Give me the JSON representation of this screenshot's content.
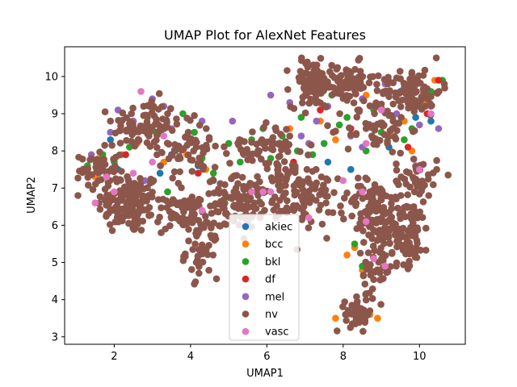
{
  "chart_data": {
    "type": "scatter",
    "title": "UMAP Plot for AlexNet Features",
    "xlabel": "UMAP1",
    "ylabel": "UMAP2",
    "xlim": [
      0.7,
      11.2
    ],
    "ylim": [
      2.8,
      10.8
    ],
    "xticks": [
      "2",
      "4",
      "6",
      "8",
      "10"
    ],
    "yticks": [
      "3",
      "4",
      "5",
      "6",
      "7",
      "8",
      "9",
      "10"
    ],
    "grid": false,
    "legend_position": "lower-center",
    "series": [
      {
        "name": "akiec",
        "color": "#1f77b4",
        "points": [
          [
            1.9,
            8.3
          ],
          [
            2.1,
            7.5
          ],
          [
            3.2,
            7.4
          ],
          [
            3.5,
            7.9
          ],
          [
            4.2,
            7.6
          ],
          [
            4.6,
            7.2
          ],
          [
            6.3,
            7.6
          ],
          [
            7.6,
            7.7
          ],
          [
            8.2,
            7.5
          ],
          [
            8.8,
            8.6
          ],
          [
            9.2,
            8.1
          ],
          [
            9.9,
            8.9
          ],
          [
            10.2,
            9.5
          ],
          [
            10.3,
            8.8
          ],
          [
            9.5,
            9.6
          ],
          [
            5.8,
            8.0
          ]
        ]
      },
      {
        "name": "bcc",
        "color": "#ff7f0e",
        "points": [
          [
            1.5,
            7.3
          ],
          [
            1.6,
            7.8
          ],
          [
            2.2,
            7.9
          ],
          [
            2.6,
            8.2
          ],
          [
            3.3,
            7.7
          ],
          [
            3.7,
            8.1
          ],
          [
            3.9,
            7.9
          ],
          [
            4.4,
            7.5
          ],
          [
            5.1,
            7.3
          ],
          [
            5.6,
            7.1
          ],
          [
            6.6,
            8.6
          ],
          [
            7.0,
            9.5
          ],
          [
            7.8,
            8.3
          ],
          [
            8.1,
            5.2
          ],
          [
            8.3,
            5.4
          ],
          [
            8.5,
            4.8
          ],
          [
            8.7,
            3.6
          ],
          [
            8.9,
            3.5
          ],
          [
            9.3,
            8.4
          ],
          [
            9.6,
            8.8
          ],
          [
            9.8,
            8.0
          ],
          [
            10.1,
            9.3
          ],
          [
            10.4,
            9.9
          ],
          [
            7.4,
            8.8
          ],
          [
            8.6,
            9.5
          ],
          [
            7.8,
            3.5
          ]
        ]
      },
      {
        "name": "bkl",
        "color": "#2ca02c",
        "points": [
          [
            1.3,
            7.6
          ],
          [
            1.7,
            7.9
          ],
          [
            2.0,
            7.7
          ],
          [
            2.4,
            8.1
          ],
          [
            2.9,
            8.6
          ],
          [
            3.1,
            8.5
          ],
          [
            3.4,
            6.9
          ],
          [
            3.6,
            8.0
          ],
          [
            3.8,
            9.0
          ],
          [
            4.1,
            8.5
          ],
          [
            4.3,
            7.8
          ],
          [
            4.6,
            7.4
          ],
          [
            5.0,
            8.2
          ],
          [
            5.3,
            7.7
          ],
          [
            5.6,
            8.3
          ],
          [
            5.9,
            8.6
          ],
          [
            6.1,
            7.8
          ],
          [
            6.4,
            8.4
          ],
          [
            6.8,
            8.0
          ],
          [
            7.2,
            7.9
          ],
          [
            7.5,
            8.2
          ],
          [
            7.9,
            8.7
          ],
          [
            8.1,
            8.9
          ],
          [
            8.3,
            5.5
          ],
          [
            8.5,
            4.9
          ],
          [
            8.8,
            9.1
          ],
          [
            9.0,
            8.5
          ],
          [
            9.3,
            8.9
          ],
          [
            9.6,
            8.3
          ],
          [
            9.8,
            8.6
          ],
          [
            10.0,
            9.2
          ],
          [
            10.3,
            9.6
          ],
          [
            10.6,
            9.9
          ],
          [
            8.6,
            8.0
          ],
          [
            9.1,
            5.8
          ],
          [
            6.9,
            8.9
          ],
          [
            7.7,
            9.5
          ],
          [
            4.9,
            6.6
          ]
        ]
      },
      {
        "name": "df",
        "color": "#d62728",
        "points": [
          [
            2.3,
            7.9
          ],
          [
            4.2,
            7.4
          ],
          [
            6.7,
            7.7
          ],
          [
            7.4,
            9.1
          ],
          [
            8.2,
            8.6
          ],
          [
            9.7,
            8.1
          ],
          [
            10.2,
            9.0
          ],
          [
            10.5,
            9.9
          ],
          [
            9.6,
            9.7
          ]
        ]
      },
      {
        "name": "mel",
        "color": "#9467bd",
        "points": [
          [
            1.4,
            7.9
          ],
          [
            1.9,
            8.5
          ],
          [
            2.1,
            9.1
          ],
          [
            2.5,
            8.8
          ],
          [
            2.8,
            7.2
          ],
          [
            3.0,
            9.4
          ],
          [
            3.3,
            9.2
          ],
          [
            3.5,
            8.6
          ],
          [
            3.9,
            8.4
          ],
          [
            4.3,
            8.8
          ],
          [
            5.1,
            8.8
          ],
          [
            6.1,
            9.5
          ],
          [
            6.6,
            9.3
          ],
          [
            6.9,
            8.4
          ],
          [
            7.1,
            8.2
          ],
          [
            7.3,
            8.8
          ],
          [
            7.6,
            9.2
          ],
          [
            7.9,
            9.9
          ],
          [
            8.2,
            8.4
          ],
          [
            8.5,
            9.4
          ],
          [
            8.8,
            9.2
          ],
          [
            9.1,
            9.8
          ],
          [
            9.4,
            9.0
          ],
          [
            9.7,
            9.3
          ],
          [
            10.0,
            8.7
          ],
          [
            10.3,
            9.2
          ],
          [
            10.5,
            8.6
          ],
          [
            9.9,
            7.6
          ],
          [
            8.5,
            8.1
          ],
          [
            2.9,
            6.8
          ],
          [
            6.2,
            8.2
          ],
          [
            5.4,
            7.9
          ]
        ]
      },
      {
        "name": "nv",
        "color": "#8c564b",
        "points": []
      },
      {
        "name": "vasc",
        "color": "#e377c2",
        "points": [
          [
            1.5,
            6.6
          ],
          [
            1.8,
            7.3
          ],
          [
            2.0,
            6.9
          ],
          [
            2.5,
            7.4
          ],
          [
            2.7,
            9.6
          ],
          [
            3.0,
            7.7
          ],
          [
            3.3,
            8.4
          ],
          [
            4.3,
            6.4
          ],
          [
            5.6,
            6.9
          ],
          [
            5.9,
            6.9
          ],
          [
            6.1,
            6.9
          ],
          [
            7.1,
            6.2
          ],
          [
            8.0,
            7.2
          ],
          [
            8.5,
            6.9
          ],
          [
            8.6,
            6.1
          ],
          [
            8.8,
            5.1
          ],
          [
            9.1,
            4.9
          ],
          [
            9.0,
            9.1
          ],
          [
            10.0,
            7.5
          ],
          [
            10.3,
            9.0
          ],
          [
            8.6,
            8.2
          ]
        ]
      }
    ],
    "nv_clusters": [
      {
        "cx": 2.4,
        "cy": 6.6,
        "sx": 0.6,
        "sy": 0.6,
        "n": 140
      },
      {
        "cx": 2.8,
        "cy": 8.7,
        "sx": 0.6,
        "sy": 0.5,
        "n": 90
      },
      {
        "cx": 1.6,
        "cy": 7.5,
        "sx": 0.35,
        "sy": 0.4,
        "n": 50
      },
      {
        "cx": 4.0,
        "cy": 8.1,
        "sx": 0.6,
        "sy": 0.6,
        "n": 60
      },
      {
        "cx": 3.8,
        "cy": 6.3,
        "sx": 0.5,
        "sy": 0.4,
        "n": 70
      },
      {
        "cx": 4.3,
        "cy": 5.3,
        "sx": 0.3,
        "sy": 0.5,
        "n": 40
      },
      {
        "cx": 5.4,
        "cy": 6.6,
        "sx": 0.7,
        "sy": 0.5,
        "n": 110
      },
      {
        "cx": 5.9,
        "cy": 8.2,
        "sx": 0.6,
        "sy": 0.4,
        "n": 50
      },
      {
        "cx": 7.0,
        "cy": 6.7,
        "sx": 0.6,
        "sy": 0.5,
        "n": 80
      },
      {
        "cx": 7.2,
        "cy": 9.8,
        "sx": 0.4,
        "sy": 0.45,
        "n": 90
      },
      {
        "cx": 8.1,
        "cy": 9.8,
        "sx": 0.5,
        "sy": 0.4,
        "n": 70
      },
      {
        "cx": 9.8,
        "cy": 9.6,
        "sx": 0.55,
        "sy": 0.45,
        "n": 90
      },
      {
        "cx": 8.9,
        "cy": 8.6,
        "sx": 0.6,
        "sy": 0.5,
        "n": 60
      },
      {
        "cx": 8.8,
        "cy": 6.4,
        "sx": 0.5,
        "sy": 0.6,
        "n": 100
      },
      {
        "cx": 9.6,
        "cy": 5.8,
        "sx": 0.5,
        "sy": 0.6,
        "n": 100
      },
      {
        "cx": 9.9,
        "cy": 7.2,
        "sx": 0.4,
        "sy": 0.5,
        "n": 50
      },
      {
        "cx": 8.4,
        "cy": 3.6,
        "sx": 0.25,
        "sy": 0.3,
        "n": 45
      },
      {
        "cx": 8.8,
        "cy": 4.8,
        "sx": 0.35,
        "sy": 0.5,
        "n": 40
      },
      {
        "cx": 6.5,
        "cy": 7.5,
        "sx": 0.5,
        "sy": 0.4,
        "n": 40
      }
    ]
  }
}
